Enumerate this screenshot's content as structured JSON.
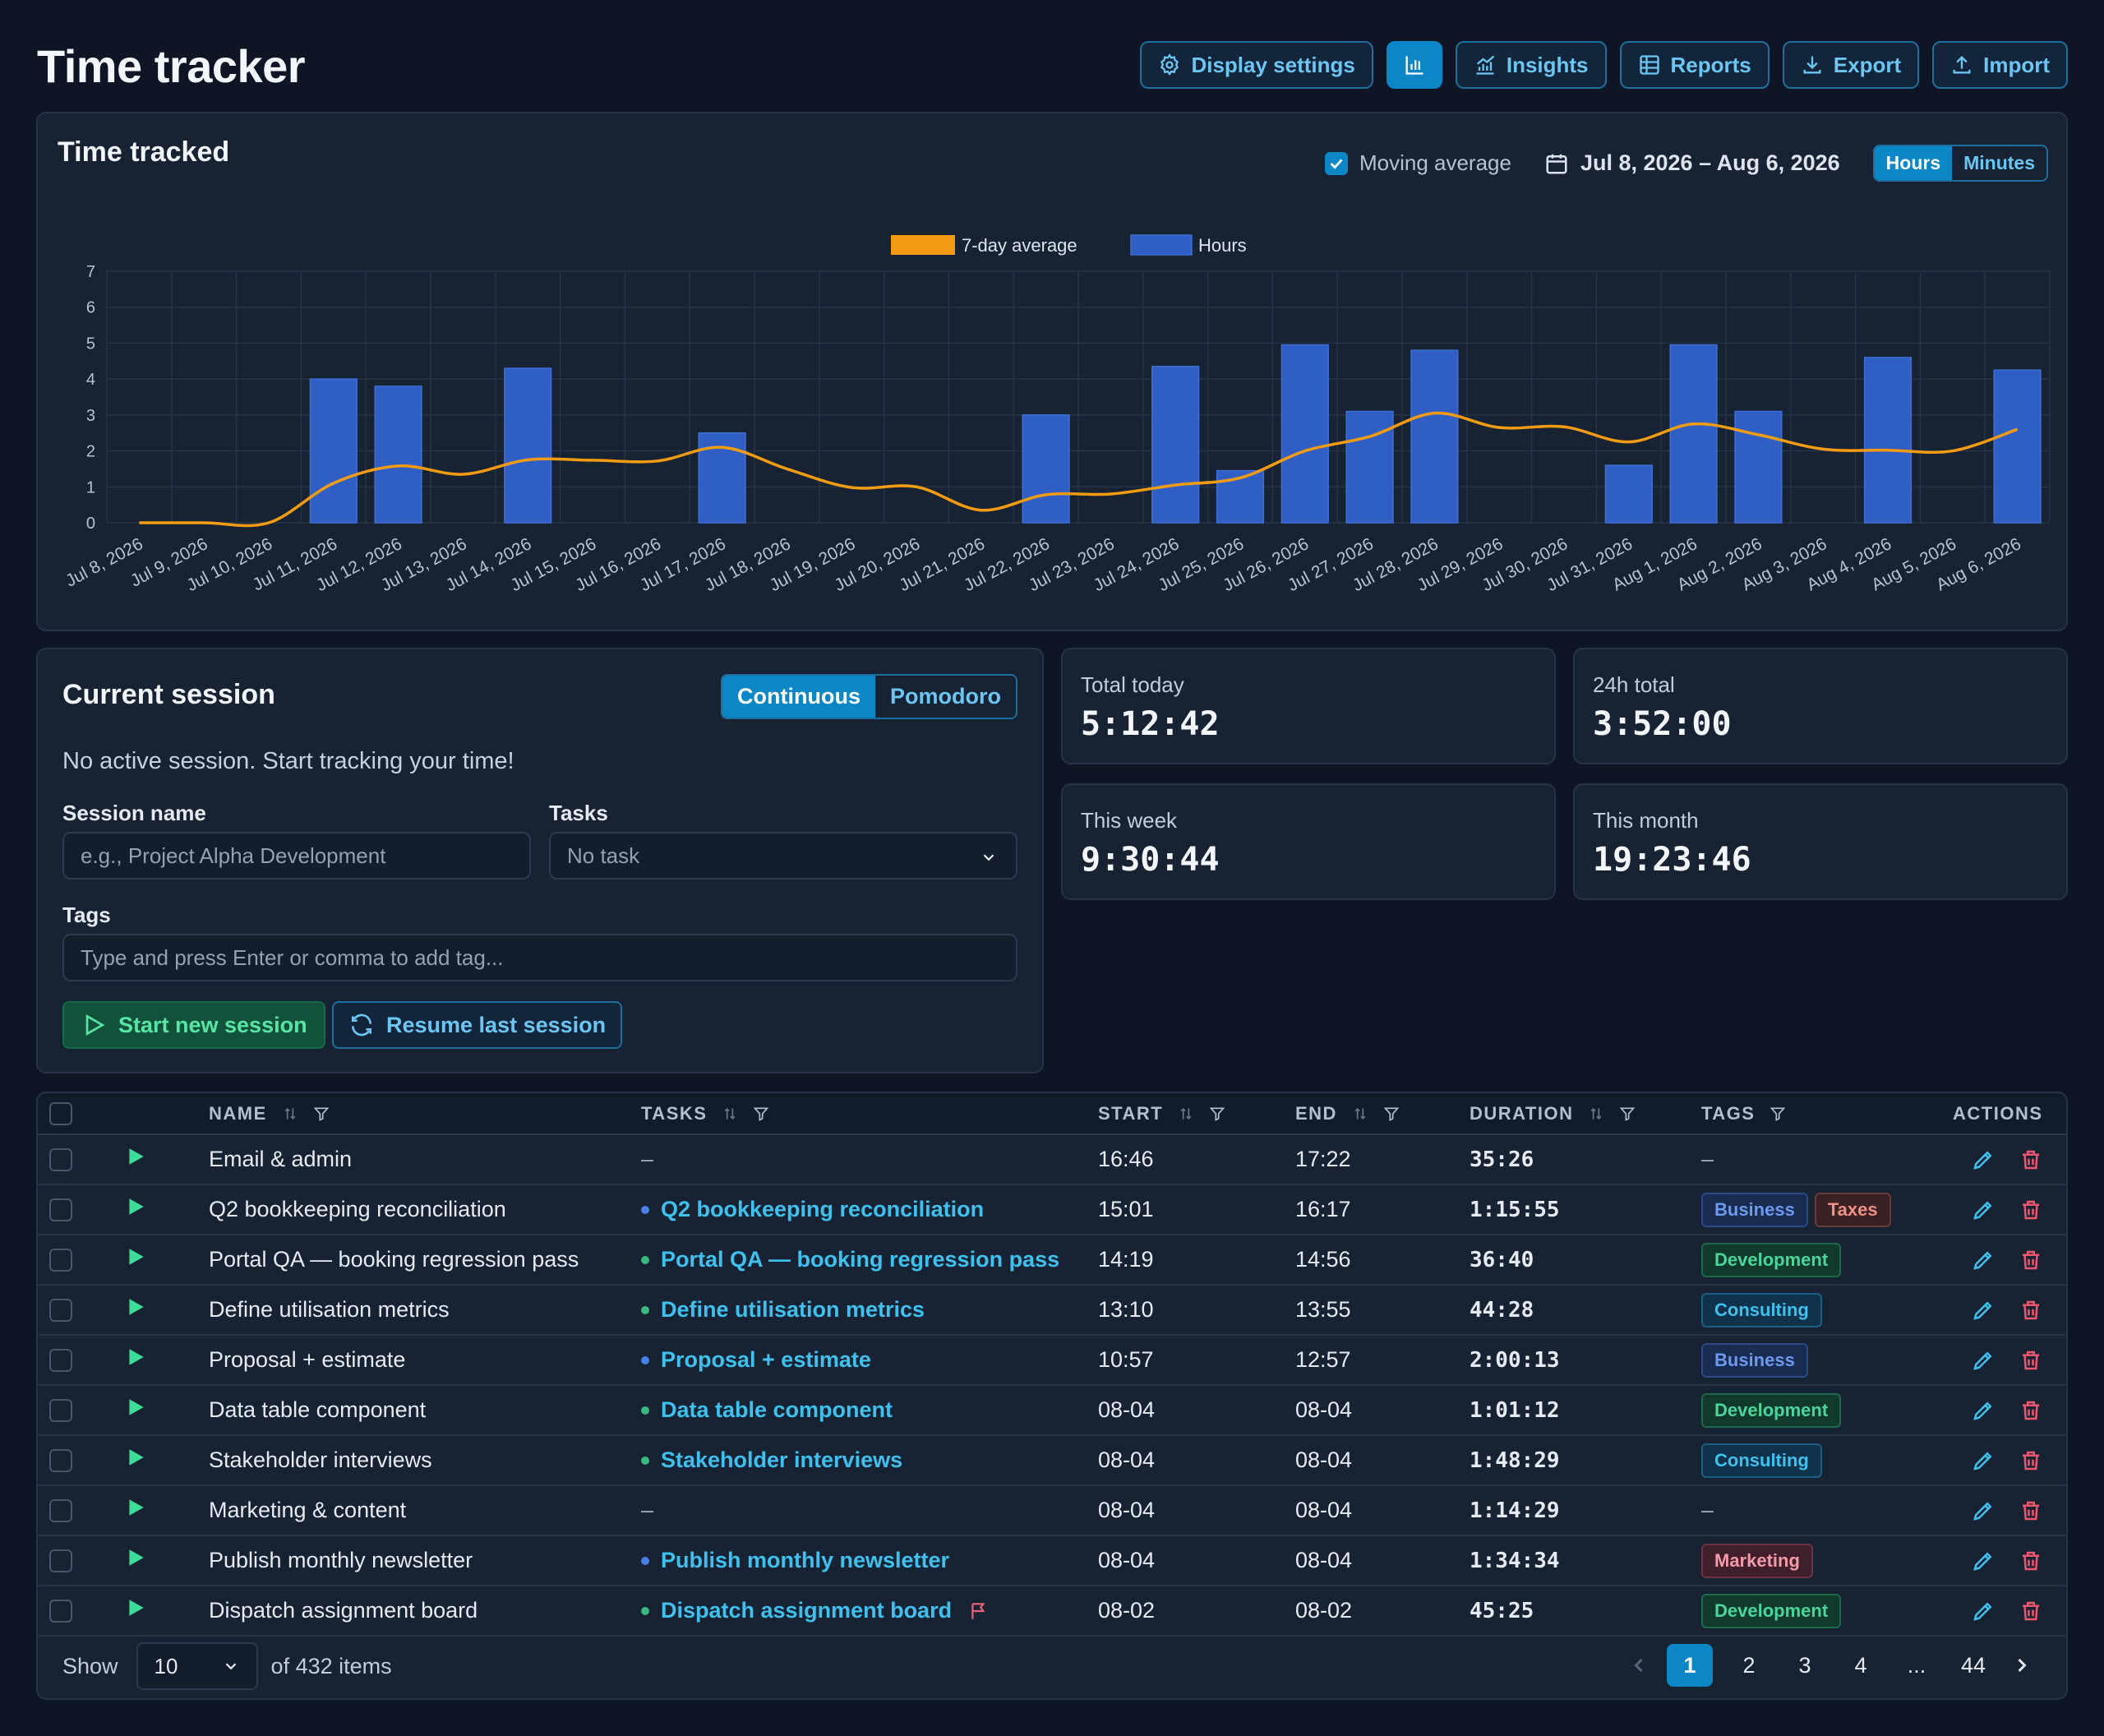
{
  "header": {
    "title": "Time tracker",
    "buttons": {
      "display_settings": "Display settings",
      "insights": "Insights",
      "reports": "Reports",
      "export": "Export",
      "import": "Import"
    }
  },
  "chart_card": {
    "title": "Time tracked",
    "moving_average_label": "Moving average",
    "moving_average_enabled": true,
    "date_range": "Jul 8, 2026 – Aug 6, 2026",
    "unit_toggle": {
      "hours": "Hours",
      "minutes": "Minutes",
      "selected": "Hours"
    }
  },
  "chart_data": {
    "type": "bar",
    "title": "",
    "xlabel": "",
    "ylabel": "",
    "ylim": [
      0,
      7
    ],
    "yticks": [
      "0",
      "1",
      "2",
      "3",
      "4",
      "5",
      "6",
      "7"
    ],
    "grid": true,
    "legend_placement": "top-center",
    "categories": [
      "Jul 8, 2026",
      "Jul 9, 2026",
      "Jul 10, 2026",
      "Jul 11, 2026",
      "Jul 12, 2026",
      "Jul 13, 2026",
      "Jul 14, 2026",
      "Jul 15, 2026",
      "Jul 16, 2026",
      "Jul 17, 2026",
      "Jul 18, 2026",
      "Jul 19, 2026",
      "Jul 20, 2026",
      "Jul 21, 2026",
      "Jul 22, 2026",
      "Jul 23, 2026",
      "Jul 24, 2026",
      "Jul 25, 2026",
      "Jul 26, 2026",
      "Jul 27, 2026",
      "Jul 28, 2026",
      "Jul 29, 2026",
      "Jul 30, 2026",
      "Jul 31, 2026",
      "Aug 1, 2026",
      "Aug 2, 2026",
      "Aug 3, 2026",
      "Aug 4, 2026",
      "Aug 5, 2026",
      "Aug 6, 2026"
    ],
    "series": [
      {
        "name": "Hours",
        "kind": "bar",
        "color": "#2f5fc4",
        "values": [
          0,
          0,
          0,
          4.0,
          3.8,
          0,
          4.3,
          0,
          0,
          2.5,
          0,
          0,
          0,
          0,
          3.0,
          0,
          4.35,
          1.45,
          4.95,
          3.1,
          4.8,
          0,
          0,
          1.6,
          4.95,
          3.1,
          0,
          4.6,
          0,
          4.25
        ]
      },
      {
        "name": "7-day average",
        "kind": "line",
        "color": "#f39c12",
        "values": [
          0,
          0,
          0,
          1.1,
          1.58,
          1.35,
          1.75,
          1.74,
          1.72,
          2.1,
          1.5,
          0.98,
          1.0,
          0.35,
          0.78,
          0.8,
          1.05,
          1.25,
          2.0,
          2.4,
          3.05,
          2.65,
          2.67,
          2.25,
          2.75,
          2.45,
          2.05,
          2.02,
          2.0,
          2.6
        ]
      }
    ]
  },
  "session": {
    "title": "Current session",
    "modes": [
      "Continuous",
      "Pomodoro"
    ],
    "selected_mode": "Continuous",
    "status": "No active session. Start tracking your time!",
    "session_name_label": "Session name",
    "session_name_placeholder": "e.g., Project Alpha Development",
    "tasks_label": "Tasks",
    "tasks_value": "No task",
    "tags_label": "Tags",
    "tags_placeholder": "Type and press Enter or comma to add tag...",
    "start_button": "Start new session",
    "resume_button": "Resume last session"
  },
  "stats": {
    "today": {
      "label": "Total today",
      "value": "5:12:42"
    },
    "day24": {
      "label": "24h total",
      "value": "3:52:00"
    },
    "week": {
      "label": "This week",
      "value": "9:30:44"
    },
    "month": {
      "label": "This month",
      "value": "19:23:46"
    }
  },
  "table": {
    "columns": {
      "name": "NAME",
      "tasks": "TASKS",
      "start": "START",
      "end": "END",
      "duration": "DURATION",
      "tags": "TAGS",
      "actions": "ACTIONS"
    },
    "rows": [
      {
        "name": "Email & admin",
        "task": "–",
        "task_dot": "",
        "start": "16:46",
        "end": "17:22",
        "duration": "35:26",
        "tags": [],
        "flag": false
      },
      {
        "name": "Q2 bookkeeping reconciliation",
        "task": "Q2 bookkeeping reconciliation",
        "task_dot": "#4a7fe8",
        "start": "15:01",
        "end": "16:17",
        "duration": "1:15:55",
        "tags": [
          "Business",
          "Taxes"
        ],
        "flag": false
      },
      {
        "name": "Portal QA — booking regression pass",
        "task": "Portal QA — booking regression pass",
        "task_dot": "#3bb87f",
        "start": "14:19",
        "end": "14:56",
        "duration": "36:40",
        "tags": [
          "Development"
        ],
        "flag": false
      },
      {
        "name": "Define utilisation metrics",
        "task": "Define utilisation metrics",
        "task_dot": "#3bb87f",
        "start": "13:10",
        "end": "13:55",
        "duration": "44:28",
        "tags": [
          "Consulting"
        ],
        "flag": false
      },
      {
        "name": "Proposal + estimate",
        "task": "Proposal + estimate",
        "task_dot": "#4a7fe8",
        "start": "10:57",
        "end": "12:57",
        "duration": "2:00:13",
        "tags": [
          "Business"
        ],
        "flag": false
      },
      {
        "name": "Data table component",
        "task": "Data table component",
        "task_dot": "#3bb87f",
        "start": "08-04",
        "end": "08-04",
        "duration": "1:01:12",
        "tags": [
          "Development"
        ],
        "flag": false
      },
      {
        "name": "Stakeholder interviews",
        "task": "Stakeholder interviews",
        "task_dot": "#3bb87f",
        "start": "08-04",
        "end": "08-04",
        "duration": "1:48:29",
        "tags": [
          "Consulting"
        ],
        "flag": false
      },
      {
        "name": "Marketing & content",
        "task": "–",
        "task_dot": "",
        "start": "08-04",
        "end": "08-04",
        "duration": "1:14:29",
        "tags": [],
        "flag": false
      },
      {
        "name": "Publish monthly newsletter",
        "task": "Publish monthly newsletter",
        "task_dot": "#4a7fe8",
        "start": "08-04",
        "end": "08-04",
        "duration": "1:34:34",
        "tags": [
          "Marketing"
        ],
        "flag": false
      },
      {
        "name": "Dispatch assignment board",
        "task": "Dispatch assignment board",
        "task_dot": "#3bb87f",
        "start": "08-02",
        "end": "08-02",
        "duration": "45:25",
        "tags": [
          "Development"
        ],
        "flag": true
      }
    ],
    "empty_tag": "–"
  },
  "pagination": {
    "show_label": "Show",
    "page_size": "10",
    "total_label": "of 432 items",
    "pages": [
      "1",
      "2",
      "3",
      "4",
      "...",
      "44"
    ],
    "current": "1"
  }
}
